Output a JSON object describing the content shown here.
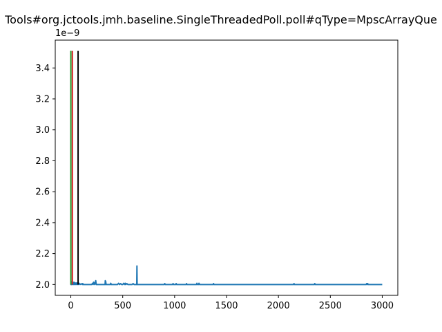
{
  "chart_data": {
    "type": "line",
    "title": "Tools#org.jctools.jmh.baseline.SingleThreadedPoll.poll#qType=MpscArrayQue",
    "xlabel": "",
    "ylabel": "",
    "y_offset_text": "1e−9",
    "xlim": [
      -150,
      3150
    ],
    "ylim": [
      1.93e-09,
      3.58e-09
    ],
    "x_ticks": [
      0,
      500,
      1000,
      1500,
      2000,
      2500,
      3000
    ],
    "x_tick_labels": [
      "0",
      "500",
      "1000",
      "1500",
      "2000",
      "2500",
      "3000"
    ],
    "y_ticks": [
      2e-09,
      2.2e-09,
      2.4e-09,
      2.6e-09,
      2.8e-09,
      3e-09,
      3.2e-09,
      3.4e-09
    ],
    "y_tick_labels": [
      "2.0",
      "2.2",
      "2.4",
      "2.6",
      "2.8",
      "3.0",
      "3.2",
      "3.4"
    ],
    "grid": false,
    "series": [
      {
        "color": "#1f77b4",
        "x": [
          0,
          1,
          2,
          3,
          5,
          7,
          10,
          15,
          20,
          25,
          30,
          35,
          40,
          45,
          50,
          55,
          60,
          65,
          70,
          75,
          80,
          90,
          100,
          110,
          115,
          120,
          130,
          150,
          200,
          210,
          215,
          220,
          230,
          240,
          245,
          250,
          260,
          300,
          330,
          332,
          334,
          336,
          340,
          350,
          380,
          385,
          390,
          400,
          450,
          460,
          470,
          480,
          490,
          500,
          510,
          520,
          525,
          530,
          540,
          550,
          560,
          590,
          600,
          610,
          620,
          630,
          635,
          637,
          639,
          641,
          645,
          700,
          800,
          900,
          905,
          910,
          980,
          985,
          990,
          1000,
          1010,
          1015,
          1020,
          1100,
          1110,
          1115,
          1120,
          1200,
          1210,
          1215,
          1220,
          1230,
          1235,
          1240,
          1370,
          1375,
          1380,
          1500,
          2000,
          2145,
          2150,
          2155,
          2345,
          2350,
          2355,
          2500,
          2845,
          2850,
          2855,
          2860,
          2865,
          2870,
          3000
        ],
        "y": [
          3.51e-09,
          2e-09,
          2.01e-09,
          2e-09,
          2.005e-09,
          2e-09,
          2.02e-09,
          2e-09,
          2.01e-09,
          2e-09,
          2.015e-09,
          2e-09,
          2.01e-09,
          2e-09,
          2.01e-09,
          2e-09,
          2.01e-09,
          2e-09,
          2.005e-09,
          2e-09,
          2.008e-09,
          2e-09,
          2.005e-09,
          2e-09,
          2.006e-09,
          2e-09,
          2e-09,
          2e-09,
          2e-09,
          2.008e-09,
          2e-09,
          2.015e-09,
          2e-09,
          2.025e-09,
          2e-09,
          2e-09,
          2e-09,
          2e-09,
          2e-09,
          2.025e-09,
          2e-09,
          2.02e-09,
          2e-09,
          2e-09,
          2e-09,
          2.008e-09,
          2e-09,
          2e-09,
          2e-09,
          2.008e-09,
          2e-09,
          2.006e-09,
          2e-09,
          2e-09,
          2.008e-09,
          2e-09,
          2.008e-09,
          2e-09,
          2.006e-09,
          2e-09,
          2e-09,
          2e-09,
          2.006e-09,
          2e-09,
          2e-09,
          2e-09,
          2e-09,
          2.12e-09,
          2e-09,
          2e-09,
          2e-09,
          2e-09,
          2e-09,
          2e-09,
          2.006e-09,
          2e-09,
          2e-09,
          2.006e-09,
          2e-09,
          2e-09,
          2e-09,
          2.006e-09,
          2e-09,
          2e-09,
          2e-09,
          2.006e-09,
          2e-09,
          2e-09,
          2e-09,
          2.008e-09,
          2e-09,
          2e-09,
          2.008e-09,
          2e-09,
          2e-09,
          2.006e-09,
          2e-09,
          2e-09,
          2e-09,
          2e-09,
          2.006e-09,
          2e-09,
          2e-09,
          2.006e-09,
          2e-09,
          2e-09,
          2e-09,
          2.006e-09,
          2e-09,
          2.006e-09,
          2e-09,
          2e-09,
          2e-09
        ]
      }
    ],
    "vlines": [
      {
        "x": 0,
        "y_from": 2e-09,
        "y_to": 3.51e-09,
        "color": "#2ca02c"
      },
      {
        "x": 15,
        "y_from": 2e-09,
        "y_to": 3.51e-09,
        "color": "#d62728"
      },
      {
        "x": 70,
        "y_from": 2e-09,
        "y_to": 3.51e-09,
        "color": "#000000"
      }
    ]
  }
}
